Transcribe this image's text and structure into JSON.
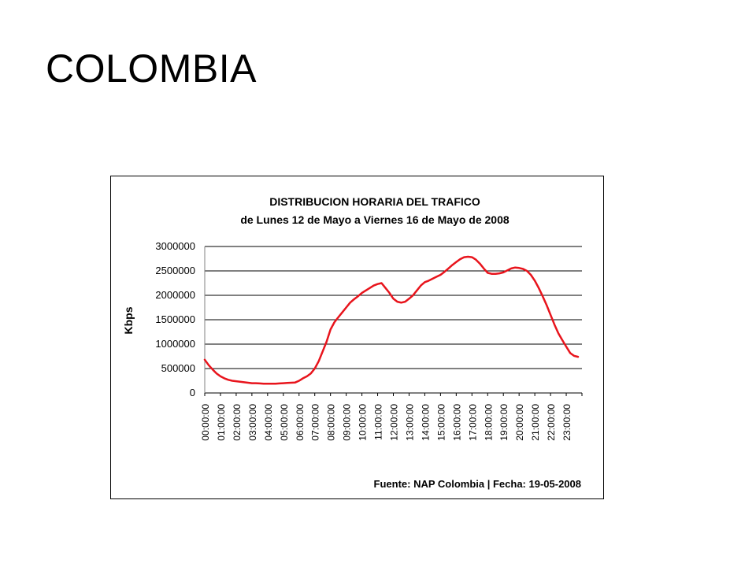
{
  "slide": {
    "title": "COLOMBIA"
  },
  "chart_data": {
    "type": "line",
    "title": "DISTRIBUCION HORARIA DEL TRAFICO",
    "subtitle": "de Lunes 12 de Mayo a Viernes 16 de Mayo de 2008",
    "xlabel": "",
    "ylabel": "Kbps",
    "ylim": [
      0,
      3000000
    ],
    "yticks": [
      "0",
      "500000",
      "1000000",
      "1500000",
      "2000000",
      "2500000",
      "3000000"
    ],
    "grid": true,
    "legend": "none",
    "source": "Fuente: NAP Colombia | Fecha: 19-05-2008",
    "line_color": "#e8141c",
    "categories": [
      "00:00:00",
      "01:00:00",
      "02:00:00",
      "03:00:00",
      "04:00:00",
      "05:00:00",
      "06:00:00",
      "07:00:00",
      "08:00:00",
      "09:00:00",
      "10:00:00",
      "11:00:00",
      "12:00:00",
      "13:00:00",
      "14:00:00",
      "15:00:00",
      "16:00:00",
      "17:00:00",
      "18:00:00",
      "19:00:00",
      "20:00:00",
      "21:00:00",
      "22:00:00",
      "23:00:00"
    ],
    "series": [
      {
        "x": [
          0,
          0.25,
          0.5,
          0.75,
          1,
          1.25,
          1.5,
          1.75,
          2,
          2.25,
          2.5,
          2.75,
          3,
          3.25,
          3.5,
          3.75,
          4,
          4.25,
          4.5,
          4.75,
          5,
          5.25,
          5.5,
          5.75,
          6,
          6.25,
          6.5,
          6.75,
          7,
          7.25,
          7.5,
          7.75,
          8,
          8.25,
          8.5,
          8.75,
          9,
          9.25,
          9.5,
          9.75,
          10,
          10.25,
          10.5,
          10.75,
          11,
          11.25,
          11.5,
          11.75,
          12,
          12.25,
          12.5,
          12.75,
          13,
          13.25,
          13.5,
          13.75,
          14,
          14.25,
          14.5,
          14.75,
          15,
          15.25,
          15.5,
          15.75,
          16,
          16.25,
          16.5,
          16.75,
          17,
          17.25,
          17.5,
          17.75,
          18,
          18.25,
          18.5,
          18.75,
          19,
          19.25,
          19.5,
          19.75,
          20,
          20.25,
          20.5,
          20.75,
          21,
          21.25,
          21.5,
          21.75,
          22,
          22.25,
          22.5,
          22.75,
          23,
          23.25,
          23.5,
          23.75
        ],
        "values": [
          680000,
          570000,
          480000,
          400000,
          340000,
          300000,
          270000,
          250000,
          240000,
          230000,
          220000,
          210000,
          200000,
          200000,
          195000,
          190000,
          190000,
          190000,
          190000,
          195000,
          200000,
          205000,
          210000,
          215000,
          250000,
          300000,
          340000,
          400000,
          500000,
          650000,
          850000,
          1050000,
          1300000,
          1450000,
          1550000,
          1650000,
          1750000,
          1850000,
          1920000,
          1980000,
          2050000,
          2100000,
          2150000,
          2200000,
          2230000,
          2250000,
          2150000,
          2050000,
          1930000,
          1870000,
          1850000,
          1870000,
          1930000,
          2000000,
          2100000,
          2200000,
          2270000,
          2300000,
          2340000,
          2380000,
          2420000,
          2480000,
          2550000,
          2620000,
          2680000,
          2740000,
          2780000,
          2790000,
          2780000,
          2730000,
          2650000,
          2550000,
          2460000,
          2440000,
          2440000,
          2450000,
          2470000,
          2510000,
          2550000,
          2570000,
          2560000,
          2540000,
          2500000,
          2420000,
          2300000,
          2150000,
          1980000,
          1800000,
          1600000,
          1400000,
          1220000,
          1080000,
          950000,
          820000,
          760000,
          740000
        ]
      }
    ]
  }
}
